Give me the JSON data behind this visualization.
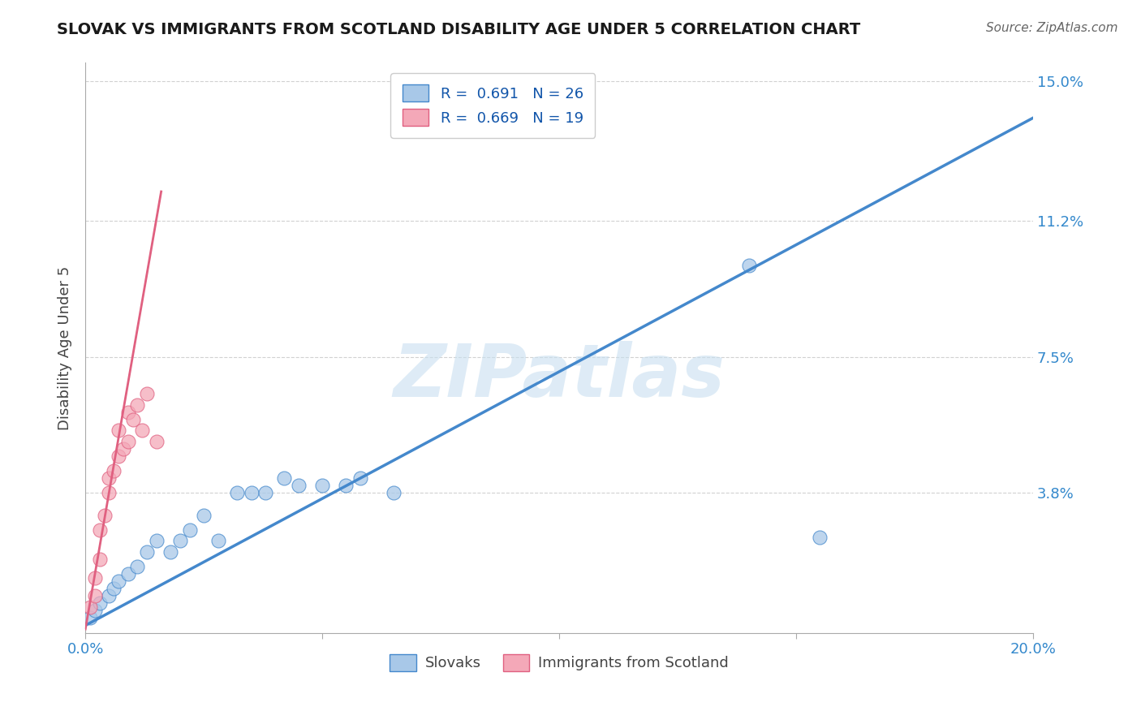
{
  "title": "SLOVAK VS IMMIGRANTS FROM SCOTLAND DISABILITY AGE UNDER 5 CORRELATION CHART",
  "source": "Source: ZipAtlas.com",
  "ylabel": "Disability Age Under 5",
  "xlim": [
    0.0,
    0.2
  ],
  "ylim": [
    0.0,
    0.155
  ],
  "ytick_positions": [
    0.038,
    0.075,
    0.112,
    0.15
  ],
  "ytick_labels": [
    "3.8%",
    "7.5%",
    "11.2%",
    "15.0%"
  ],
  "blue_R": "0.691",
  "blue_N": "26",
  "pink_R": "0.669",
  "pink_N": "19",
  "blue_scatter_x": [
    0.001,
    0.002,
    0.003,
    0.005,
    0.006,
    0.007,
    0.009,
    0.011,
    0.013,
    0.015,
    0.018,
    0.02,
    0.022,
    0.025,
    0.028,
    0.032,
    0.035,
    0.038,
    0.042,
    0.045,
    0.05,
    0.055,
    0.058,
    0.065,
    0.14,
    0.155
  ],
  "blue_scatter_y": [
    0.004,
    0.006,
    0.008,
    0.01,
    0.012,
    0.014,
    0.016,
    0.018,
    0.022,
    0.025,
    0.022,
    0.025,
    0.028,
    0.032,
    0.025,
    0.038,
    0.038,
    0.038,
    0.042,
    0.04,
    0.04,
    0.04,
    0.042,
    0.038,
    0.1,
    0.026
  ],
  "pink_scatter_x": [
    0.001,
    0.002,
    0.002,
    0.003,
    0.003,
    0.004,
    0.005,
    0.005,
    0.006,
    0.007,
    0.007,
    0.008,
    0.009,
    0.009,
    0.01,
    0.011,
    0.012,
    0.013,
    0.015
  ],
  "pink_scatter_y": [
    0.007,
    0.01,
    0.015,
    0.02,
    0.028,
    0.032,
    0.038,
    0.042,
    0.044,
    0.048,
    0.055,
    0.05,
    0.052,
    0.06,
    0.058,
    0.062,
    0.055,
    0.065,
    0.052
  ],
  "blue_line_x": [
    0.0,
    0.2
  ],
  "blue_line_y": [
    0.002,
    0.14
  ],
  "pink_line_x": [
    0.0,
    0.016
  ],
  "pink_line_y": [
    0.001,
    0.12
  ],
  "blue_color": "#a8c8e8",
  "pink_color": "#f4a8b8",
  "blue_line_color": "#4488cc",
  "pink_line_color": "#e06080",
  "watermark": "ZIPatlas",
  "grid_color": "#cccccc",
  "watermark_color": "#c8dff0"
}
